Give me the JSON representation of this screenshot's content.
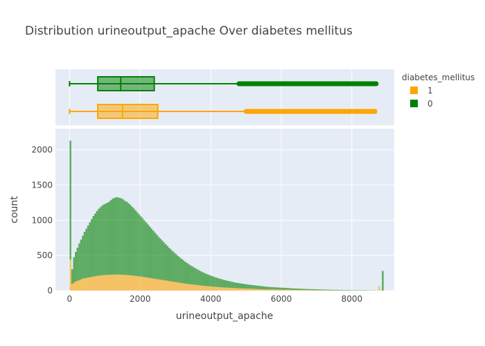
{
  "chart_data": {
    "type": "histogram",
    "title": "Distribution urineoutput_apache Over diabetes mellitus",
    "xlabel": "urineoutput_apache",
    "ylabel": "count",
    "xlim": [
      -400,
      9200
    ],
    "ylim": [
      0,
      2300
    ],
    "xticks": [
      0,
      2000,
      4000,
      6000,
      8000
    ],
    "xtick_labels": [
      "0",
      "2000",
      "4000",
      "6000",
      "8000"
    ],
    "yticks": [
      0,
      500,
      1000,
      1500,
      2000
    ],
    "ytick_labels": [
      "0",
      "500",
      "1000",
      "1500",
      "2000"
    ],
    "barmode": "stack",
    "grid": true,
    "legend": {
      "title": "diabetes_mellitus",
      "placement": "top-right",
      "entries": [
        {
          "name": "1",
          "color": "#FFA500"
        },
        {
          "name": "0",
          "color": "#008000"
        }
      ]
    },
    "histogram": {
      "bin_start": 0,
      "bin_width": 50,
      "series": [
        {
          "name": "1",
          "color": "#FFA500",
          "counts": [
            440,
            95,
            115,
            130,
            140,
            150,
            160,
            170,
            175,
            180,
            185,
            190,
            195,
            200,
            205,
            210,
            212,
            215,
            218,
            220,
            222,
            224,
            225,
            226,
            227,
            228,
            228,
            228,
            227,
            226,
            225,
            224,
            222,
            220,
            218,
            215,
            212,
            209,
            206,
            203,
            200,
            196,
            192,
            188,
            184,
            180,
            176,
            172,
            168,
            164,
            160,
            156,
            152,
            148,
            144,
            140,
            136,
            132,
            128,
            124,
            120,
            116,
            112,
            108,
            104,
            100,
            97,
            94,
            91,
            88,
            85,
            82,
            79,
            76,
            73,
            70,
            67,
            65,
            63,
            61,
            59,
            57,
            55,
            53,
            51,
            49,
            47,
            45,
            44,
            42,
            41,
            39,
            38,
            36,
            35,
            34,
            33,
            32,
            31,
            30,
            29,
            28,
            27,
            26,
            25,
            24,
            23,
            22,
            21,
            20,
            19,
            18,
            18,
            17,
            17,
            16,
            16,
            15,
            15,
            14,
            14,
            13,
            13,
            12,
            12,
            11,
            11,
            10,
            10,
            10,
            9,
            9,
            9,
            8,
            8,
            8,
            7,
            7,
            7,
            6,
            6,
            6,
            6,
            5,
            5,
            5,
            5,
            4,
            4,
            4,
            4,
            4,
            3,
            3,
            3,
            3,
            3,
            3,
            2,
            2,
            2,
            2,
            2,
            2,
            2,
            2,
            2,
            2,
            2,
            2,
            2,
            1,
            1,
            1,
            1,
            60
          ]
        },
        {
          "name": "0",
          "color": "#008000",
          "counts": [
            1690,
            210,
            360,
            420,
            470,
            520,
            565,
            610,
            660,
            700,
            740,
            780,
            820,
            860,
            890,
            920,
            950,
            970,
            990,
            1005,
            1015,
            1025,
            1040,
            1060,
            1080,
            1090,
            1100,
            1095,
            1090,
            1085,
            1070,
            1050,
            1040,
            1020,
            1000,
            975,
            955,
            930,
            905,
            880,
            855,
            830,
            805,
            780,
            755,
            730,
            705,
            680,
            655,
            630,
            605,
            582,
            560,
            538,
            516,
            494,
            472,
            452,
            432,
            414,
            396,
            378,
            360,
            344,
            328,
            312,
            298,
            284,
            270,
            258,
            246,
            234,
            223,
            212,
            202,
            192,
            183,
            174,
            166,
            158,
            150,
            143,
            136,
            130,
            124,
            118,
            113,
            108,
            103,
            98,
            94,
            90,
            86,
            82,
            78,
            75,
            72,
            69,
            66,
            63,
            60,
            58,
            56,
            54,
            52,
            50,
            48,
            46,
            44,
            42,
            40,
            38,
            36,
            35,
            34,
            33,
            32,
            31,
            30,
            29,
            28,
            27,
            26,
            25,
            24,
            23,
            22,
            21,
            20,
            19,
            18,
            17,
            16,
            16,
            15,
            15,
            14,
            14,
            13,
            13,
            12,
            12,
            11,
            11,
            10,
            10,
            9,
            9,
            9,
            8,
            8,
            8,
            7,
            7,
            7,
            6,
            6,
            6,
            6,
            5,
            5,
            5,
            5,
            4,
            4,
            4,
            4,
            4,
            3,
            3,
            3,
            3,
            3,
            2,
            2,
            2,
            2,
            280
          ]
        }
      ]
    },
    "box_plots": [
      {
        "name": "0",
        "color": "#008000",
        "min": 0,
        "q1": 800,
        "median": 1450,
        "q3": 2400,
        "upper_fence": 4800,
        "outliers_from": 4800,
        "outliers_to": 8700
      },
      {
        "name": "1",
        "color": "#FFA500",
        "min": 0,
        "q1": 800,
        "median": 1500,
        "q3": 2500,
        "upper_fence": 5000,
        "outliers_from": 5000,
        "outliers_to": 8700
      }
    ]
  }
}
